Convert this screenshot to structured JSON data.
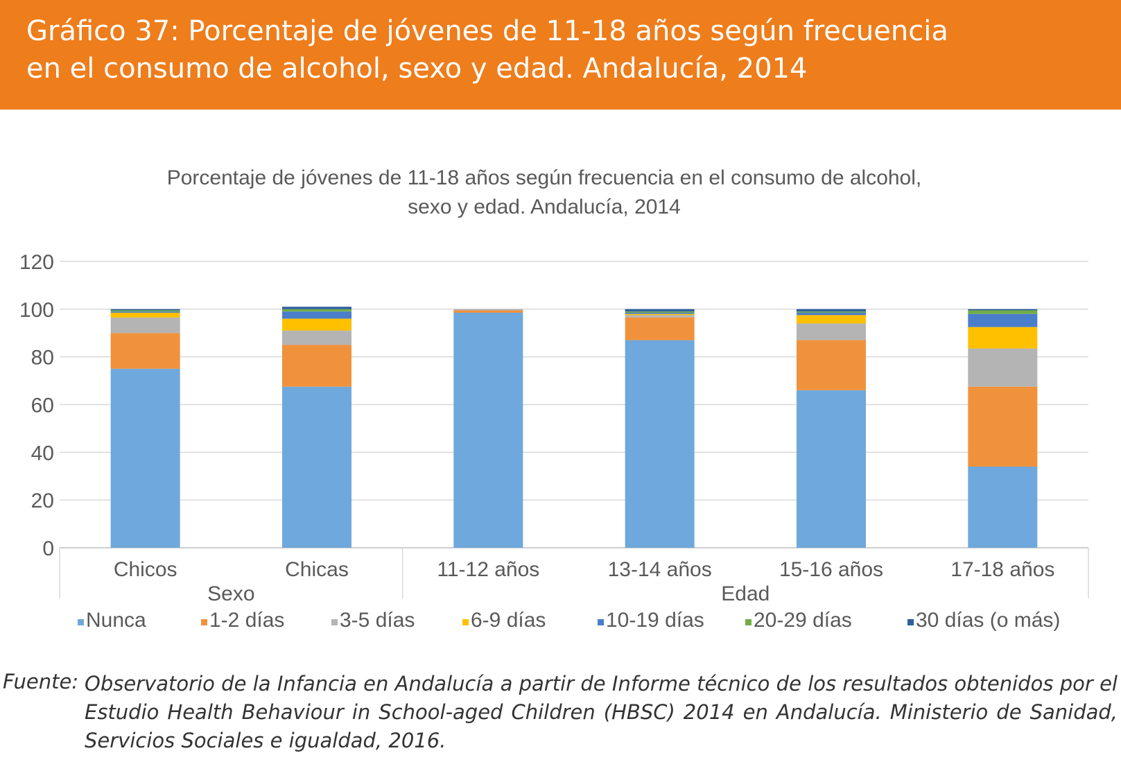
{
  "banner": {
    "title_line1": "Gráfico 37: Porcentaje de jóvenes de 11-18 años según frecuencia",
    "title_line2": "en el consumo de alcohol, sexo y edad. Andalucía, 2014"
  },
  "chart_data": {
    "type": "bar",
    "stacked": true,
    "title_line1": "Porcentaje de jóvenes de 11-18 años según frecuencia en el consumo de alcohol,",
    "title_line2": "sexo y edad. Andalucía, 2014",
    "categories": [
      "Chicos",
      "Chicas",
      "11-12 años",
      "13-14 años",
      "15-16 años",
      "17-18 años"
    ],
    "groups": [
      {
        "name": "Sexo",
        "categories": [
          "Chicos",
          "Chicas"
        ]
      },
      {
        "name": "Edad",
        "categories": [
          "11-12 años",
          "13-14 años",
          "15-16 años",
          "17-18 años"
        ]
      }
    ],
    "ylim": [
      0,
      120
    ],
    "yticks": [
      0,
      20,
      40,
      60,
      80,
      100,
      120
    ],
    "grid": true,
    "legend_position": "bottom",
    "series": [
      {
        "name": "Nunca",
        "color": "#6fa8dc",
        "values": [
          75,
          67.5,
          98.5,
          87,
          66,
          34
        ]
      },
      {
        "name": "1-2 días",
        "color": "#f0923c",
        "values": [
          15,
          17.5,
          1,
          9.5,
          21,
          33.5
        ]
      },
      {
        "name": "3-5 días",
        "color": "#b4b4b4",
        "values": [
          6.5,
          6,
          0.5,
          1,
          7,
          16
        ]
      },
      {
        "name": "6-9 días",
        "color": "#ffc000",
        "values": [
          2,
          5,
          0,
          0.5,
          3.5,
          9
        ]
      },
      {
        "name": "10-19 días",
        "color": "#4a7ecb",
        "values": [
          0.5,
          3,
          0,
          0.5,
          1,
          5.5
        ]
      },
      {
        "name": "20-29 días",
        "color": "#70ad47",
        "values": [
          0.5,
          1,
          0,
          0.5,
          0.5,
          1.5
        ]
      },
      {
        "name": "30 días (o más)",
        "color": "#2e5f9e",
        "values": [
          0.5,
          1,
          0,
          1,
          1,
          0.5
        ]
      }
    ]
  },
  "source": {
    "label": "Fuente:",
    "text": "Observatorio de la Infancia en Andalucía a partir de Informe técnico de los resultados obtenidos por el Estudio Health Behaviour in School-aged Children (HBSC) 2014 en Andalucía. Ministerio de Sanidad, Servicios Sociales e igualdad, 2016."
  }
}
